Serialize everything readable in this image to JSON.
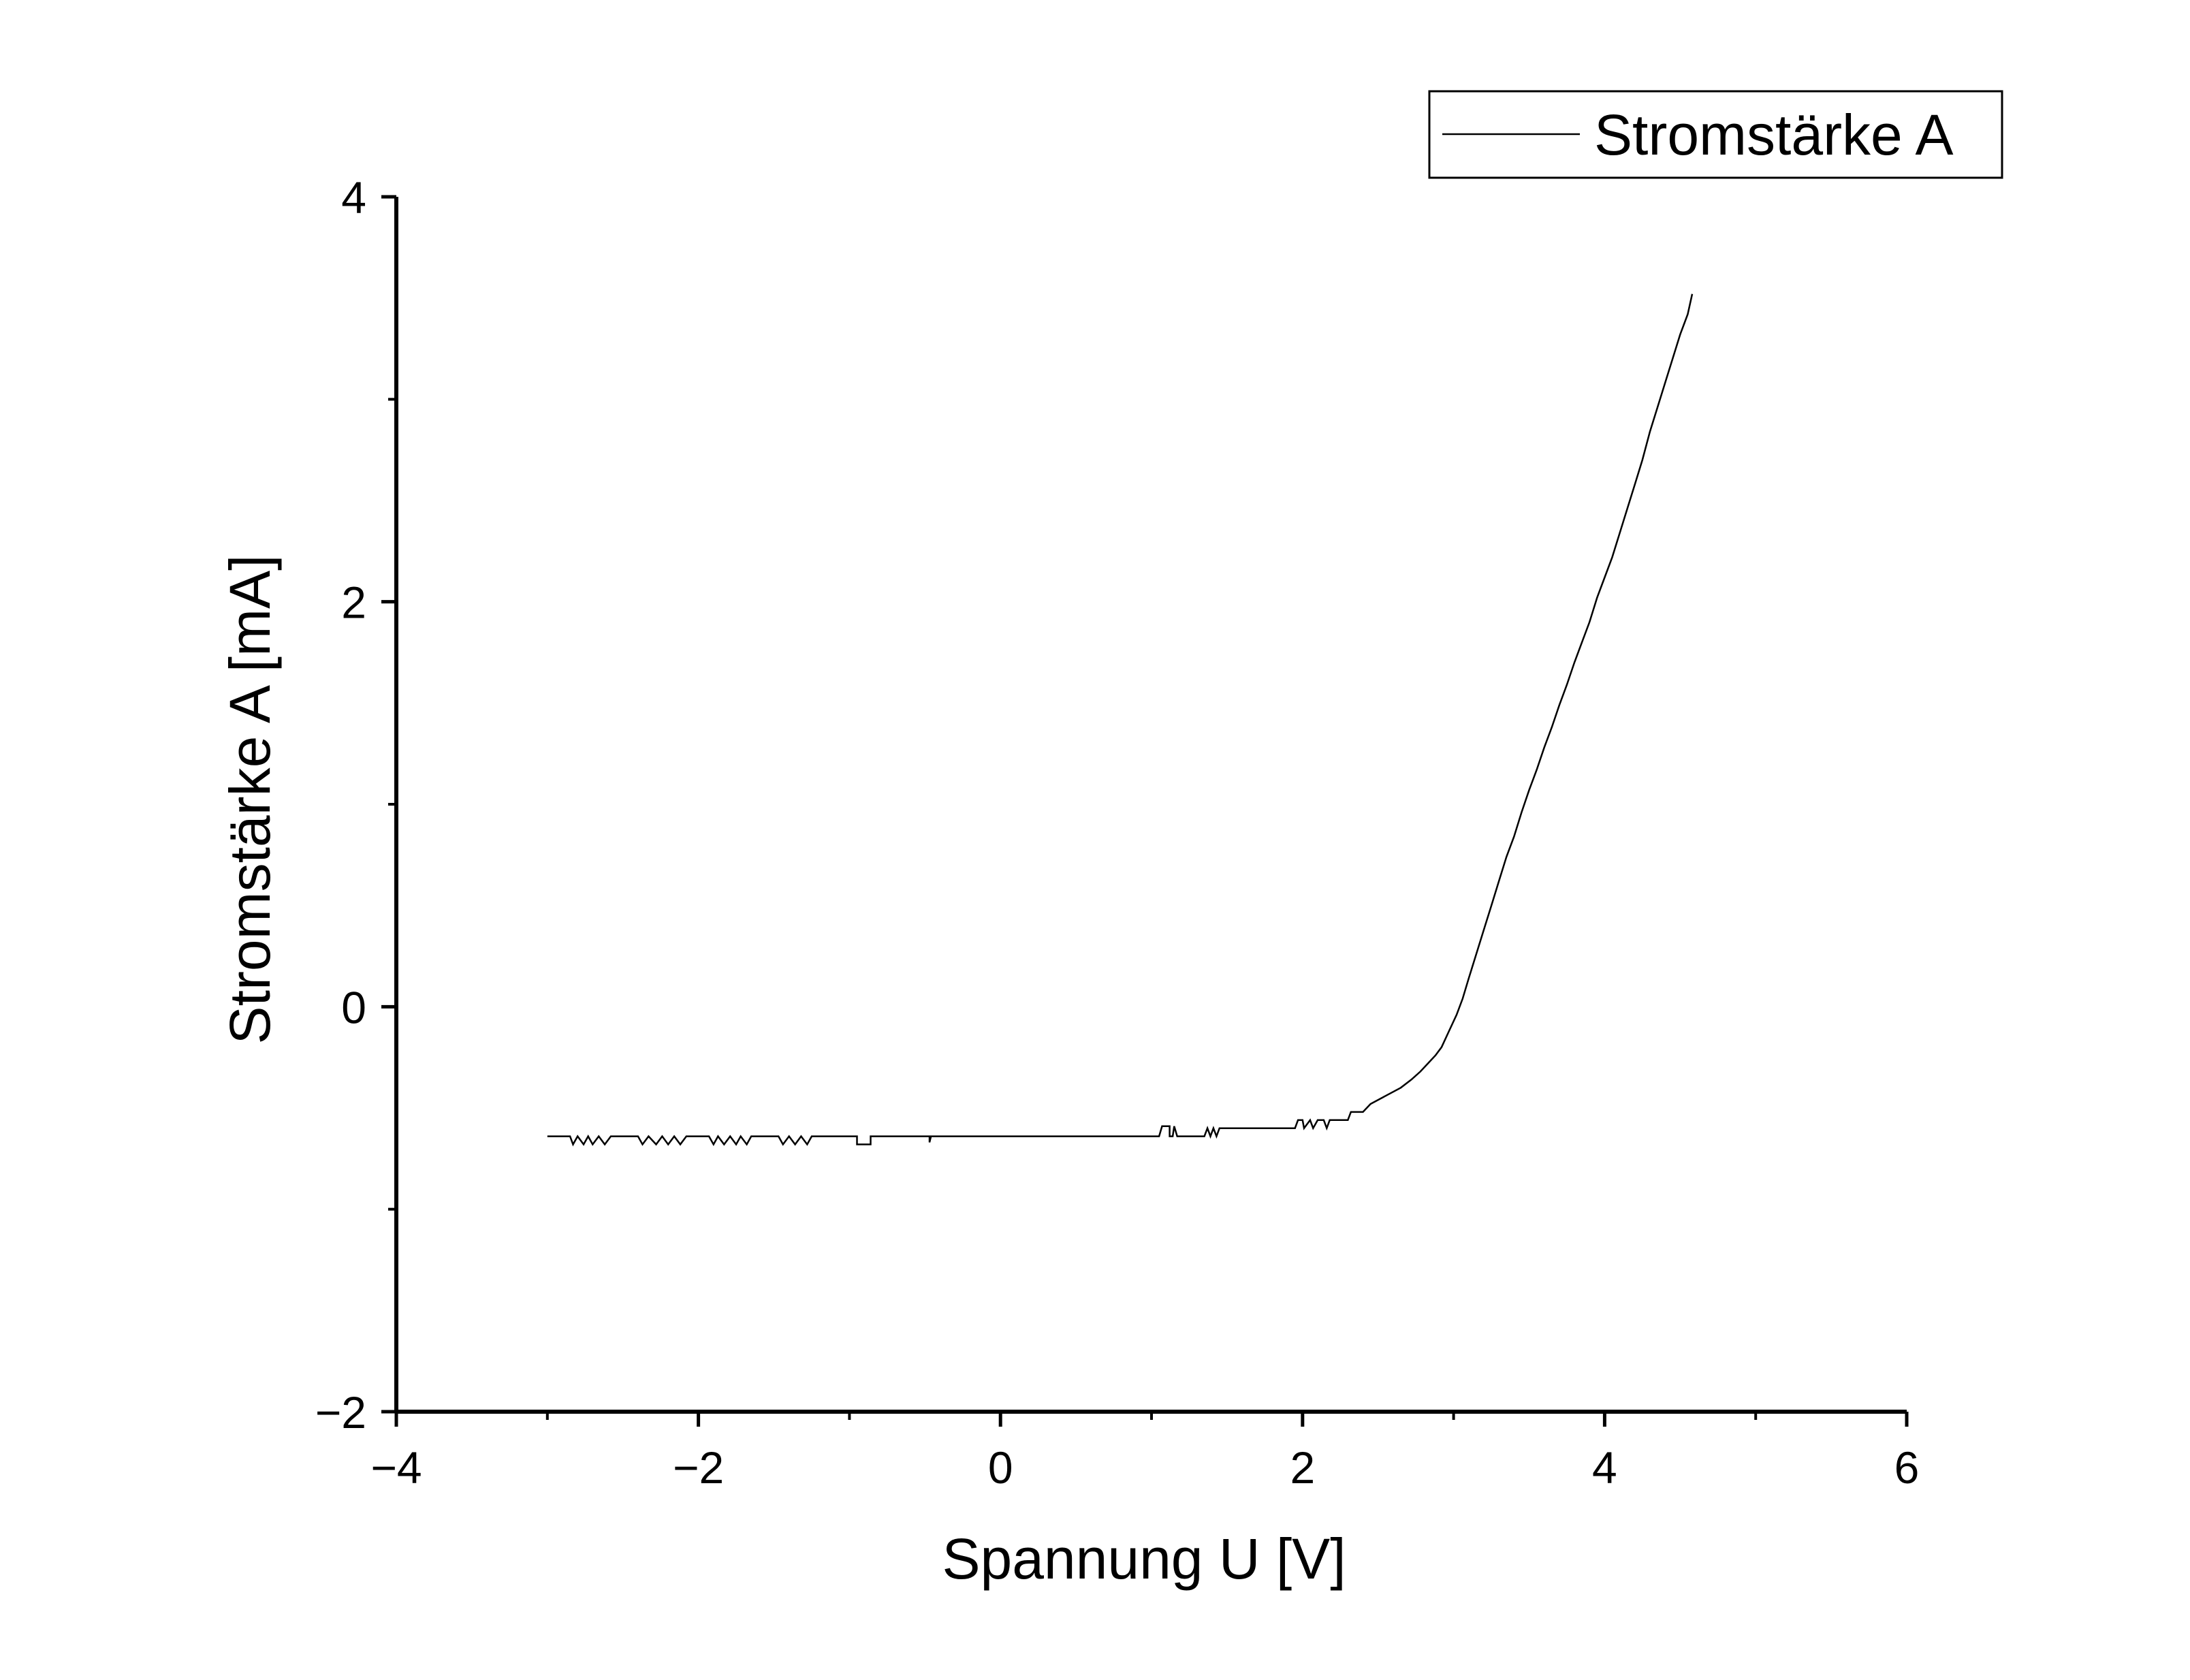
{
  "chart_data": {
    "type": "line",
    "xlabel": "Spannung U [V]",
    "ylabel": "Stromstärke A [mA]",
    "xlim": [
      -4,
      6
    ],
    "ylim": [
      -2,
      4
    ],
    "x_ticks": [
      -4,
      -2,
      0,
      2,
      4,
      6
    ],
    "y_ticks": [
      -2,
      0,
      2,
      4
    ],
    "x_tick_labels": [
      "−4",
      "−2",
      "0",
      "2",
      "4",
      "6"
    ],
    "y_tick_labels": [
      "−2",
      "0",
      "2",
      "4"
    ],
    "grid": false,
    "legend": {
      "position": "top-right",
      "entries": [
        "Stromstärke A"
      ]
    },
    "colors": {
      "line": "#000000",
      "axes": "#000000",
      "background": "#ffffff"
    },
    "series": [
      {
        "name": "Stromstärke A",
        "points": [
          [
            -3.0,
            -0.64
          ],
          [
            -2.85,
            -0.64
          ],
          [
            -2.83,
            -0.68
          ],
          [
            -2.8,
            -0.64
          ],
          [
            -2.76,
            -0.68
          ],
          [
            -2.73,
            -0.64
          ],
          [
            -2.7,
            -0.68
          ],
          [
            -2.66,
            -0.64
          ],
          [
            -2.62,
            -0.68
          ],
          [
            -2.58,
            -0.64
          ],
          [
            -2.4,
            -0.64
          ],
          [
            -2.37,
            -0.68
          ],
          [
            -2.33,
            -0.64
          ],
          [
            -2.28,
            -0.68
          ],
          [
            -2.24,
            -0.64
          ],
          [
            -2.2,
            -0.68
          ],
          [
            -2.16,
            -0.64
          ],
          [
            -2.12,
            -0.68
          ],
          [
            -2.08,
            -0.64
          ],
          [
            -1.93,
            -0.64
          ],
          [
            -1.9,
            -0.68
          ],
          [
            -1.87,
            -0.64
          ],
          [
            -1.83,
            -0.68
          ],
          [
            -1.79,
            -0.64
          ],
          [
            -1.75,
            -0.68
          ],
          [
            -1.72,
            -0.64
          ],
          [
            -1.68,
            -0.68
          ],
          [
            -1.65,
            -0.64
          ],
          [
            -1.47,
            -0.64
          ],
          [
            -1.44,
            -0.68
          ],
          [
            -1.4,
            -0.64
          ],
          [
            -1.36,
            -0.68
          ],
          [
            -1.32,
            -0.64
          ],
          [
            -1.28,
            -0.68
          ],
          [
            -1.25,
            -0.64
          ],
          [
            -0.95,
            -0.64
          ],
          [
            -0.95,
            -0.68
          ],
          [
            -0.86,
            -0.68
          ],
          [
            -0.86,
            -0.64
          ],
          [
            -0.47,
            -0.64
          ],
          [
            -0.47,
            -0.67
          ],
          [
            -0.46,
            -0.64
          ],
          [
            1.05,
            -0.64
          ],
          [
            1.07,
            -0.59
          ],
          [
            1.12,
            -0.59
          ],
          [
            1.12,
            -0.64
          ],
          [
            1.14,
            -0.64
          ],
          [
            1.15,
            -0.59
          ],
          [
            1.17,
            -0.64
          ],
          [
            1.35,
            -0.64
          ],
          [
            1.37,
            -0.6
          ],
          [
            1.39,
            -0.64
          ],
          [
            1.41,
            -0.6
          ],
          [
            1.43,
            -0.64
          ],
          [
            1.45,
            -0.6
          ],
          [
            1.6,
            -0.6
          ],
          [
            1.95,
            -0.6
          ],
          [
            1.97,
            -0.56
          ],
          [
            2.0,
            -0.56
          ],
          [
            2.01,
            -0.6
          ],
          [
            2.05,
            -0.56
          ],
          [
            2.07,
            -0.6
          ],
          [
            2.1,
            -0.56
          ],
          [
            2.14,
            -0.56
          ],
          [
            2.16,
            -0.6
          ],
          [
            2.18,
            -0.56
          ],
          [
            2.3,
            -0.56
          ],
          [
            2.32,
            -0.52
          ],
          [
            2.4,
            -0.52
          ],
          [
            2.45,
            -0.48
          ],
          [
            2.55,
            -0.44
          ],
          [
            2.65,
            -0.4
          ],
          [
            2.72,
            -0.36
          ],
          [
            2.78,
            -0.32
          ],
          [
            2.83,
            -0.28
          ],
          [
            2.88,
            -0.24
          ],
          [
            2.92,
            -0.2
          ],
          [
            2.97,
            -0.12
          ],
          [
            3.02,
            -0.04
          ],
          [
            3.06,
            0.04
          ],
          [
            3.1,
            0.14
          ],
          [
            3.15,
            0.26
          ],
          [
            3.2,
            0.38
          ],
          [
            3.25,
            0.5
          ],
          [
            3.3,
            0.62
          ],
          [
            3.35,
            0.74
          ],
          [
            3.4,
            0.84
          ],
          [
            3.45,
            0.96
          ],
          [
            3.5,
            1.07
          ],
          [
            3.55,
            1.17
          ],
          [
            3.6,
            1.28
          ],
          [
            3.65,
            1.38
          ],
          [
            3.7,
            1.49
          ],
          [
            3.75,
            1.59
          ],
          [
            3.8,
            1.7
          ],
          [
            3.85,
            1.8
          ],
          [
            3.9,
            1.9
          ],
          [
            3.95,
            2.02
          ],
          [
            4.0,
            2.12
          ],
          [
            4.05,
            2.22
          ],
          [
            4.1,
            2.34
          ],
          [
            4.15,
            2.46
          ],
          [
            4.2,
            2.58
          ],
          [
            4.25,
            2.7
          ],
          [
            4.3,
            2.84
          ],
          [
            4.35,
            2.96
          ],
          [
            4.4,
            3.08
          ],
          [
            4.45,
            3.2
          ],
          [
            4.5,
            3.32
          ],
          [
            4.55,
            3.42
          ],
          [
            4.58,
            3.52
          ]
        ]
      }
    ]
  }
}
